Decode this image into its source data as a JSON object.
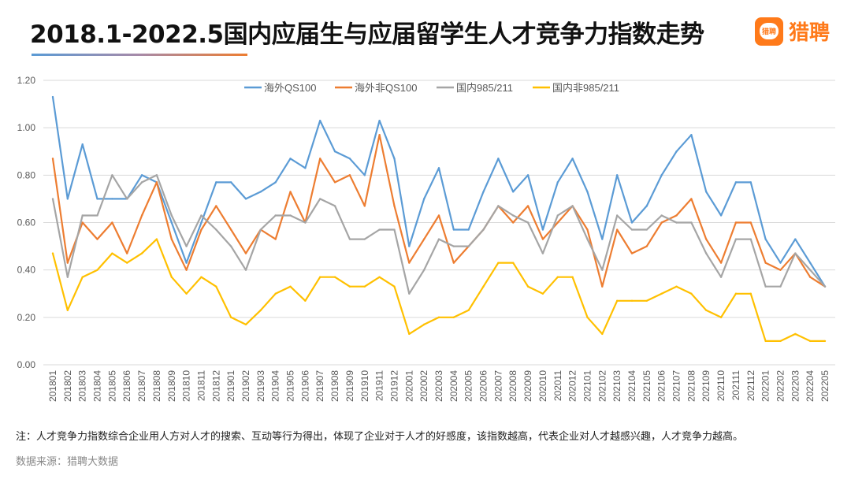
{
  "header": {
    "title": "2018.1-2022.5国内应届生与应届留学生人才竞争力指数走势",
    "logo_text": "猎聘",
    "logo_badge_text": "猎聘",
    "brand_color": "#ff7a1a"
  },
  "footer": {
    "note": "注：人才竞争力指数综合企业用人方对人才的搜索、互动等行为得出，体现了企业对于人才的好感度，该指数越高，代表企业对人才越感兴趣，人才竞争力越高。",
    "source": "数据来源：猎聘大数据"
  },
  "chart_data": {
    "type": "line",
    "title": "2018.1-2022.5国内应届生与应届留学生人才竞争力指数走势",
    "xlabel": "",
    "ylabel": "",
    "ylim": [
      0,
      1.2
    ],
    "yticks": [
      "0.00",
      "0.20",
      "0.40",
      "0.60",
      "0.80",
      "1.00",
      "1.20"
    ],
    "grid": true,
    "legend_position": "top",
    "categories": [
      "201801",
      "201802",
      "201803",
      "201804",
      "201805",
      "201806",
      "201807",
      "201808",
      "201809",
      "201810",
      "201811",
      "201812",
      "201901",
      "201902",
      "201903",
      "201904",
      "201905",
      "201906",
      "201907",
      "201908",
      "201909",
      "201910",
      "201911",
      "201912",
      "202001",
      "202002",
      "202003",
      "202004",
      "202005",
      "202006",
      "202007",
      "202008",
      "202009",
      "202010",
      "202011",
      "202012",
      "202101",
      "202102",
      "202103",
      "202104",
      "202105",
      "202106",
      "202107",
      "202108",
      "202109",
      "202110",
      "202111",
      "202112",
      "202201",
      "202202",
      "202203",
      "202204",
      "202205"
    ],
    "series": [
      {
        "name": "海外QS100",
        "color": "#5b9bd5",
        "values": [
          1.13,
          0.7,
          0.93,
          0.7,
          0.7,
          0.7,
          0.8,
          0.77,
          0.6,
          0.43,
          0.6,
          0.77,
          0.77,
          0.7,
          0.73,
          0.77,
          0.87,
          0.83,
          1.03,
          0.9,
          0.87,
          0.8,
          1.03,
          0.87,
          0.5,
          0.7,
          0.83,
          0.57,
          0.57,
          0.73,
          0.87,
          0.73,
          0.8,
          0.57,
          0.77,
          0.87,
          0.73,
          0.53,
          0.8,
          0.6,
          0.67,
          0.8,
          0.9,
          0.97,
          0.73,
          0.63,
          0.77,
          0.77,
          0.53,
          0.43,
          0.53,
          0.43,
          0.33
        ]
      },
      {
        "name": "海外非QS100",
        "color": "#ed7d31",
        "values": [
          0.87,
          0.43,
          0.6,
          0.53,
          0.6,
          0.47,
          0.63,
          0.77,
          0.53,
          0.4,
          0.57,
          0.67,
          0.57,
          0.47,
          0.57,
          0.53,
          0.73,
          0.6,
          0.87,
          0.77,
          0.8,
          0.67,
          0.97,
          0.67,
          0.43,
          0.53,
          0.63,
          0.43,
          0.5,
          0.57,
          0.67,
          0.6,
          0.67,
          0.53,
          0.6,
          0.67,
          0.57,
          0.33,
          0.57,
          0.47,
          0.5,
          0.6,
          0.63,
          0.7,
          0.53,
          0.43,
          0.6,
          0.6,
          0.43,
          0.4,
          0.47,
          0.37,
          0.33
        ]
      },
      {
        "name": "国内985/211",
        "color": "#a5a5a5",
        "values": [
          0.7,
          0.37,
          0.63,
          0.63,
          0.8,
          0.7,
          0.77,
          0.8,
          0.63,
          0.5,
          0.63,
          0.57,
          0.5,
          0.4,
          0.57,
          0.63,
          0.63,
          0.6,
          0.7,
          0.67,
          0.53,
          0.53,
          0.57,
          0.57,
          0.3,
          0.4,
          0.53,
          0.5,
          0.5,
          0.57,
          0.67,
          0.63,
          0.6,
          0.47,
          0.63,
          0.67,
          0.53,
          0.4,
          0.63,
          0.57,
          0.57,
          0.63,
          0.6,
          0.6,
          0.47,
          0.37,
          0.53,
          0.53,
          0.33,
          0.33,
          0.47,
          0.4,
          0.33
        ]
      },
      {
        "name": "国内非985/211",
        "color": "#ffc000",
        "values": [
          0.47,
          0.23,
          0.37,
          0.4,
          0.47,
          0.43,
          0.47,
          0.53,
          0.37,
          0.3,
          0.37,
          0.33,
          0.2,
          0.17,
          0.23,
          0.3,
          0.33,
          0.27,
          0.37,
          0.37,
          0.33,
          0.33,
          0.37,
          0.33,
          0.13,
          0.17,
          0.2,
          0.2,
          0.23,
          0.33,
          0.43,
          0.43,
          0.33,
          0.3,
          0.37,
          0.37,
          0.2,
          0.13,
          0.27,
          0.27,
          0.27,
          0.3,
          0.33,
          0.3,
          0.23,
          0.2,
          0.3,
          0.3,
          0.1,
          0.1,
          0.13,
          0.1,
          0.1
        ]
      }
    ]
  }
}
